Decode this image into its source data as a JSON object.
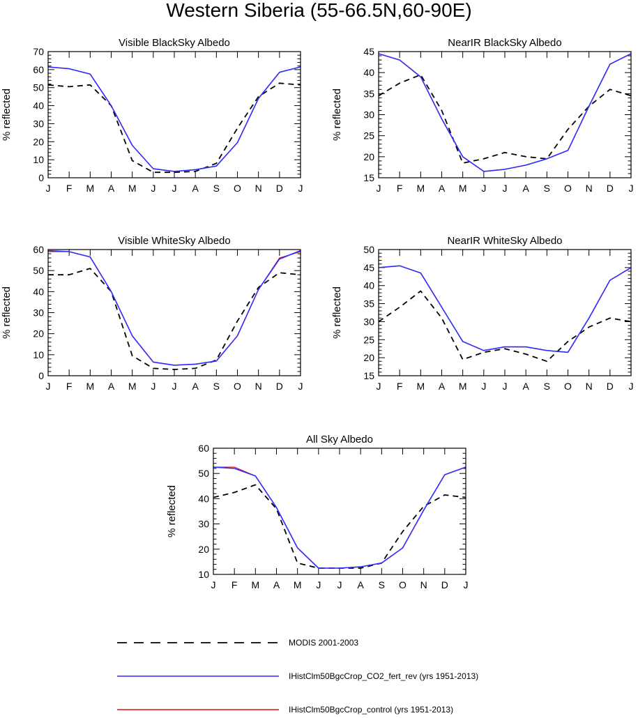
{
  "figure": {
    "title": "Western Siberia (55-66.5N,60-90E)",
    "ylabel": "% reflected",
    "legend": [
      {
        "label": "MODIS 2001-2003",
        "color": "#000000",
        "dash": "dashed"
      },
      {
        "label": "IHistClm50BgcCrop_CO2_fert_rev (yrs 1951-2013)",
        "color": "#2b2bff",
        "dash": "solid"
      },
      {
        "label": "IHistClm50BgcCrop_control (yrs 1951-2013)",
        "color": "#e01010",
        "dash": "solid"
      }
    ]
  },
  "chart_data": [
    {
      "type": "line",
      "title": "Visible BlackSky Albedo",
      "ylabel": "% reflected",
      "categories": [
        "J",
        "F",
        "M",
        "A",
        "M",
        "J",
        "J",
        "A",
        "S",
        "O",
        "N",
        "D",
        "J"
      ],
      "ylim": [
        0,
        70
      ],
      "yticks": [
        0,
        10,
        20,
        30,
        40,
        50,
        60,
        70
      ],
      "series": [
        {
          "key": "modis",
          "values": [
            51.5,
            50.5,
            51.5,
            40,
            9.5,
            3,
            3,
            3.5,
            8,
            27.5,
            45,
            52.5,
            51.5
          ]
        },
        {
          "key": "co2",
          "values": [
            61.5,
            60.5,
            57.5,
            40,
            18,
            5,
            3.5,
            4.5,
            6.5,
            19.5,
            44,
            58.5,
            61.5
          ]
        },
        {
          "key": "control",
          "values": [
            61.5,
            60.5,
            57.5,
            40,
            18,
            5,
            3.5,
            4.5,
            6.5,
            19.5,
            44,
            58.5,
            61.5
          ]
        }
      ]
    },
    {
      "type": "line",
      "title": "NearIR BlackSky Albedo",
      "ylabel": "% reflected",
      "categories": [
        "J",
        "F",
        "M",
        "A",
        "M",
        "J",
        "J",
        "A",
        "S",
        "O",
        "N",
        "D",
        "J"
      ],
      "ylim": [
        15,
        45
      ],
      "yticks": [
        15,
        20,
        25,
        30,
        35,
        40,
        45
      ],
      "series": [
        {
          "key": "modis",
          "values": [
            34.5,
            37.5,
            39.5,
            31,
            18.5,
            19.5,
            21,
            20,
            19.5,
            26.5,
            32,
            36,
            34.5
          ]
        },
        {
          "key": "co2",
          "values": [
            44.5,
            43,
            39,
            29,
            20,
            16.5,
            17,
            18,
            19.5,
            21.5,
            32,
            42,
            44.5
          ]
        },
        {
          "key": "control",
          "values": [
            44.5,
            43,
            39,
            29,
            20,
            16.5,
            17,
            18,
            19.5,
            21.5,
            32,
            42,
            44.5
          ]
        }
      ]
    },
    {
      "type": "line",
      "title": "Visible WhiteSky Albedo",
      "ylabel": "% reflected",
      "categories": [
        "J",
        "F",
        "M",
        "A",
        "M",
        "J",
        "J",
        "A",
        "S",
        "O",
        "N",
        "D",
        "J"
      ],
      "ylim": [
        0,
        60
      ],
      "yticks": [
        0,
        10,
        20,
        30,
        40,
        50,
        60
      ],
      "series": [
        {
          "key": "modis",
          "values": [
            48,
            48,
            51,
            40,
            9.5,
            3.5,
            3,
            3.5,
            7.5,
            26,
            42,
            49,
            48
          ]
        },
        {
          "key": "co2",
          "values": [
            59.5,
            59,
            56.5,
            40,
            19,
            6.5,
            5,
            5.5,
            7,
            19,
            41,
            55.5,
            59.5
          ]
        },
        {
          "key": "control",
          "values": [
            59,
            59,
            56.5,
            40,
            19,
            6.5,
            5,
            5.5,
            7,
            19,
            41,
            56,
            59
          ]
        }
      ]
    },
    {
      "type": "line",
      "title": "NearIR WhiteSky Albedo",
      "ylabel": "% reflected",
      "categories": [
        "J",
        "F",
        "M",
        "A",
        "M",
        "J",
        "J",
        "A",
        "S",
        "O",
        "N",
        "D",
        "J"
      ],
      "ylim": [
        15,
        50
      ],
      "yticks": [
        15,
        20,
        25,
        30,
        35,
        40,
        45,
        50
      ],
      "series": [
        {
          "key": "modis",
          "values": [
            30,
            34,
            38.5,
            31,
            19.5,
            21.5,
            22.5,
            21,
            19,
            24.5,
            28.5,
            31,
            30
          ]
        },
        {
          "key": "co2",
          "values": [
            45,
            45.5,
            43.5,
            34,
            24.5,
            22,
            23,
            23,
            22,
            21.5,
            31,
            41.5,
            45
          ]
        },
        {
          "key": "control",
          "values": [
            45,
            45.5,
            43.5,
            34,
            24.5,
            22,
            23,
            23,
            22,
            21.5,
            31,
            41.5,
            45
          ]
        }
      ]
    },
    {
      "type": "line",
      "title": "All Sky Albedo",
      "ylabel": "% reflected",
      "categories": [
        "J",
        "F",
        "M",
        "A",
        "M",
        "J",
        "J",
        "A",
        "S",
        "O",
        "N",
        "D",
        "J"
      ],
      "ylim": [
        10,
        60
      ],
      "yticks": [
        10,
        20,
        30,
        40,
        50,
        60
      ],
      "series": [
        {
          "key": "modis",
          "values": [
            40.5,
            42.5,
            45.5,
            36,
            14.5,
            12.5,
            12.5,
            12.5,
            14.5,
            27,
            37,
            41.5,
            40.5
          ]
        },
        {
          "key": "co2",
          "values": [
            52.5,
            52,
            49,
            36.5,
            20.5,
            12.5,
            12.5,
            13,
            14.5,
            20.5,
            35.5,
            49.5,
            52.5
          ]
        },
        {
          "key": "control",
          "values": [
            52.5,
            52.5,
            49,
            36.5,
            20.5,
            12.5,
            12.5,
            13,
            14.5,
            20.5,
            35.5,
            49.5,
            52.5
          ]
        }
      ]
    }
  ]
}
